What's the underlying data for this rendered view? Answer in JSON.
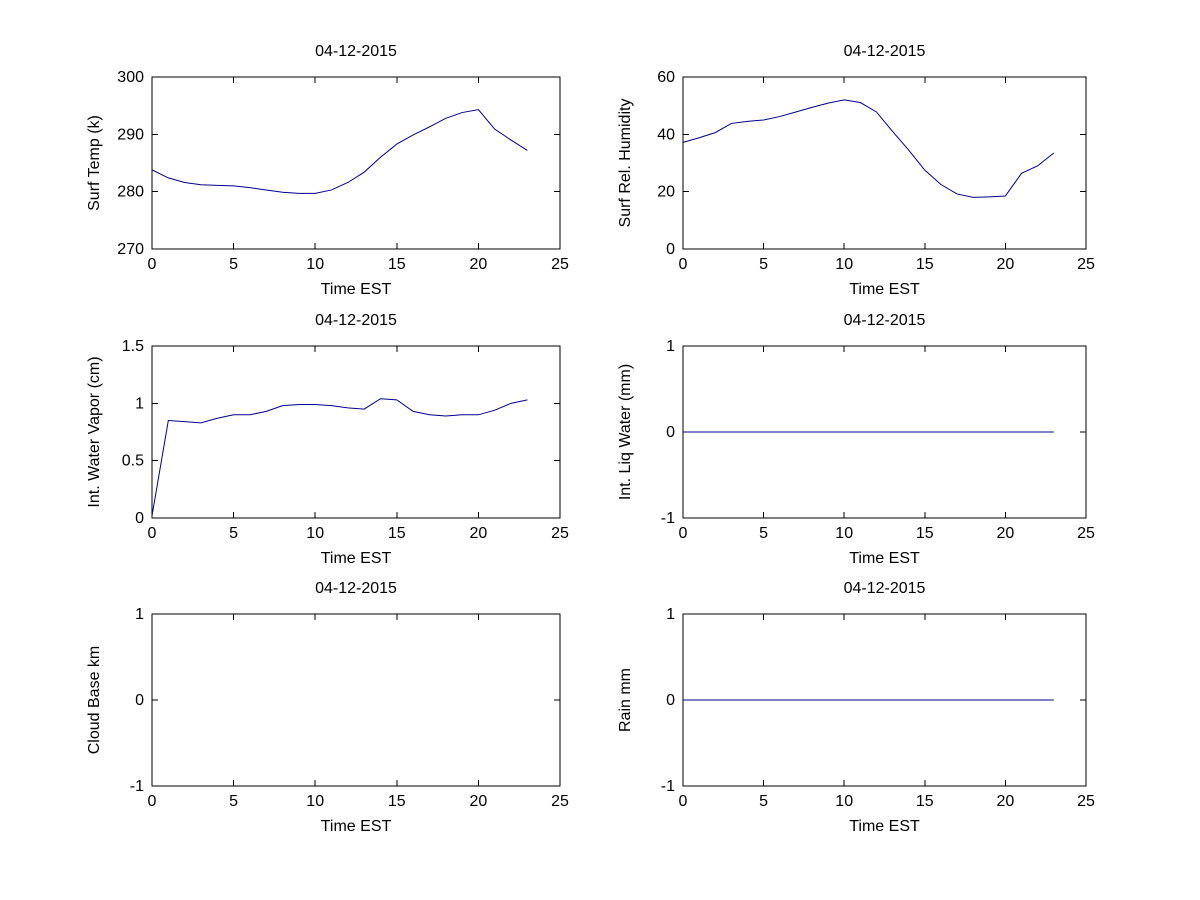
{
  "figure": {
    "background": "#FFFFFF",
    "axis_color": "#000000",
    "text_color": "#000000",
    "line_color": "#00008B"
  },
  "chart_data": [
    {
      "id": "surf-temp",
      "type": "line",
      "title": "04-12-2015",
      "xlabel": "Time EST",
      "ylabel": "Surf Temp (k)",
      "xlim": [
        0,
        25
      ],
      "ylim": [
        270,
        300
      ],
      "xticks": [
        0,
        5,
        10,
        15,
        20,
        25
      ],
      "yticks": [
        270,
        280,
        290,
        300
      ],
      "grid": false,
      "x": [
        0,
        1,
        2,
        3,
        4,
        5,
        6,
        7,
        8,
        9,
        10,
        11,
        12,
        13,
        14,
        15,
        16,
        17,
        18,
        19,
        20,
        21,
        22,
        23
      ],
      "y": [
        283.8,
        282.4,
        281.6,
        281.2,
        281.1,
        281.0,
        280.7,
        280.3,
        279.9,
        279.7,
        279.7,
        280.3,
        281.6,
        283.4,
        286.0,
        288.3,
        289.9,
        291.3,
        292.8,
        293.8,
        294.3,
        290.9,
        289.0,
        287.2
      ]
    },
    {
      "id": "surf-rel-humidity",
      "type": "line",
      "title": "04-12-2015",
      "xlabel": "Time EST",
      "ylabel": "Surf Rel. Humidity",
      "xlim": [
        0,
        25
      ],
      "ylim": [
        0,
        60
      ],
      "xticks": [
        0,
        5,
        10,
        15,
        20,
        25
      ],
      "yticks": [
        0,
        20,
        40,
        60
      ],
      "grid": false,
      "x": [
        0,
        1,
        2,
        3,
        4,
        5,
        6,
        7,
        8,
        9,
        10,
        11,
        12,
        13,
        14,
        15,
        16,
        17,
        18,
        19,
        20,
        21,
        22,
        23
      ],
      "y": [
        37.2,
        38.8,
        40.6,
        43.8,
        44.5,
        45.0,
        46.2,
        47.8,
        49.4,
        50.9,
        52.0,
        51.1,
        47.8,
        41.0,
        34.5,
        27.5,
        22.5,
        19.2,
        18.0,
        18.2,
        18.5,
        26.4,
        29.0,
        33.5
      ]
    },
    {
      "id": "int-water-vapor",
      "type": "line",
      "title": "04-12-2015",
      "xlabel": "Time EST",
      "ylabel": "Int. Water Vapor (cm)",
      "xlim": [
        0,
        25
      ],
      "ylim": [
        0,
        1.5
      ],
      "xticks": [
        0,
        5,
        10,
        15,
        20,
        25
      ],
      "yticks": [
        0,
        0.5,
        1,
        1.5
      ],
      "grid": false,
      "x": [
        0,
        1,
        2,
        3,
        4,
        5,
        6,
        7,
        8,
        9,
        10,
        11,
        12,
        13,
        14,
        15,
        16,
        17,
        18,
        19,
        20,
        21,
        22,
        23
      ],
      "y": [
        0.02,
        0.85,
        0.84,
        0.83,
        0.87,
        0.9,
        0.9,
        0.93,
        0.98,
        0.99,
        0.99,
        0.98,
        0.96,
        0.95,
        1.04,
        1.03,
        0.93,
        0.9,
        0.89,
        0.9,
        0.9,
        0.94,
        1.0,
        1.03
      ]
    },
    {
      "id": "int-liq-water",
      "type": "line",
      "title": "04-12-2015",
      "xlabel": "Time EST",
      "ylabel": "Int. Liq Water (mm)",
      "xlim": [
        0,
        25
      ],
      "ylim": [
        -1,
        1
      ],
      "xticks": [
        0,
        5,
        10,
        15,
        20,
        25
      ],
      "yticks": [
        -1,
        0,
        1
      ],
      "grid": false,
      "x": [
        0,
        1,
        2,
        3,
        4,
        5,
        6,
        7,
        8,
        9,
        10,
        11,
        12,
        13,
        14,
        15,
        16,
        17,
        18,
        19,
        20,
        21,
        22,
        23
      ],
      "y": [
        0,
        0,
        0,
        0,
        0,
        0,
        0,
        0,
        0,
        0,
        0,
        0,
        0,
        0,
        0,
        0,
        0,
        0,
        0,
        0,
        0,
        0,
        0,
        0
      ]
    },
    {
      "id": "cloud-base",
      "type": "line",
      "title": "04-12-2015",
      "xlabel": "Time EST",
      "ylabel": "Cloud Base km",
      "xlim": [
        0,
        25
      ],
      "ylim": [
        -1,
        1
      ],
      "xticks": [
        0,
        5,
        10,
        15,
        20,
        25
      ],
      "yticks": [
        -1,
        0,
        1
      ],
      "grid": false,
      "x": [],
      "y": []
    },
    {
      "id": "rain",
      "type": "line",
      "title": "04-12-2015",
      "xlabel": "Time EST",
      "ylabel": "Rain mm",
      "xlim": [
        0,
        25
      ],
      "ylim": [
        -1,
        1
      ],
      "xticks": [
        0,
        5,
        10,
        15,
        20,
        25
      ],
      "yticks": [
        -1,
        0,
        1
      ],
      "grid": false,
      "x": [
        0,
        1,
        2,
        3,
        4,
        5,
        6,
        7,
        8,
        9,
        10,
        11,
        12,
        13,
        14,
        15,
        16,
        17,
        18,
        19,
        20,
        21,
        22,
        23
      ],
      "y": [
        0,
        0,
        0,
        0,
        0,
        0,
        0,
        0,
        0,
        0,
        0,
        0,
        0,
        0,
        0,
        0,
        0,
        0,
        0,
        0,
        0,
        0,
        0,
        0
      ]
    }
  ]
}
